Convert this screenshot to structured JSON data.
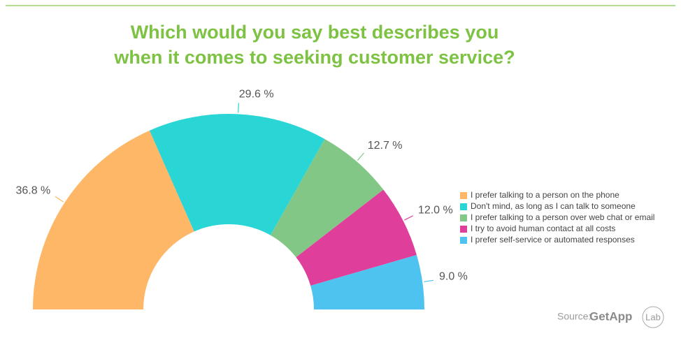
{
  "chart_data": {
    "type": "half-donut",
    "title": "Which would you say best describes you when it comes to seeking customer service?",
    "categories": [
      "I prefer talking to a person on the phone",
      "Don't mind, as long as I can talk to someone",
      "I prefer talking to a person over web chat or email",
      "I try to avoid human contact at all costs",
      "I prefer self-service or automated responses"
    ],
    "values": [
      36.8,
      29.6,
      12.7,
      12.0,
      9.0
    ],
    "value_labels": [
      "36.8 %",
      "29.6 %",
      "12.7 %",
      "12.0 %",
      "9.0 %"
    ],
    "colors": [
      "#fdb766",
      "#2ad5d6",
      "#82c785",
      "#df3f9a",
      "#4fc3f0"
    ],
    "legend": "right"
  },
  "source": {
    "label": "Source:",
    "brand": "GetApp",
    "suffix": "Lab"
  }
}
